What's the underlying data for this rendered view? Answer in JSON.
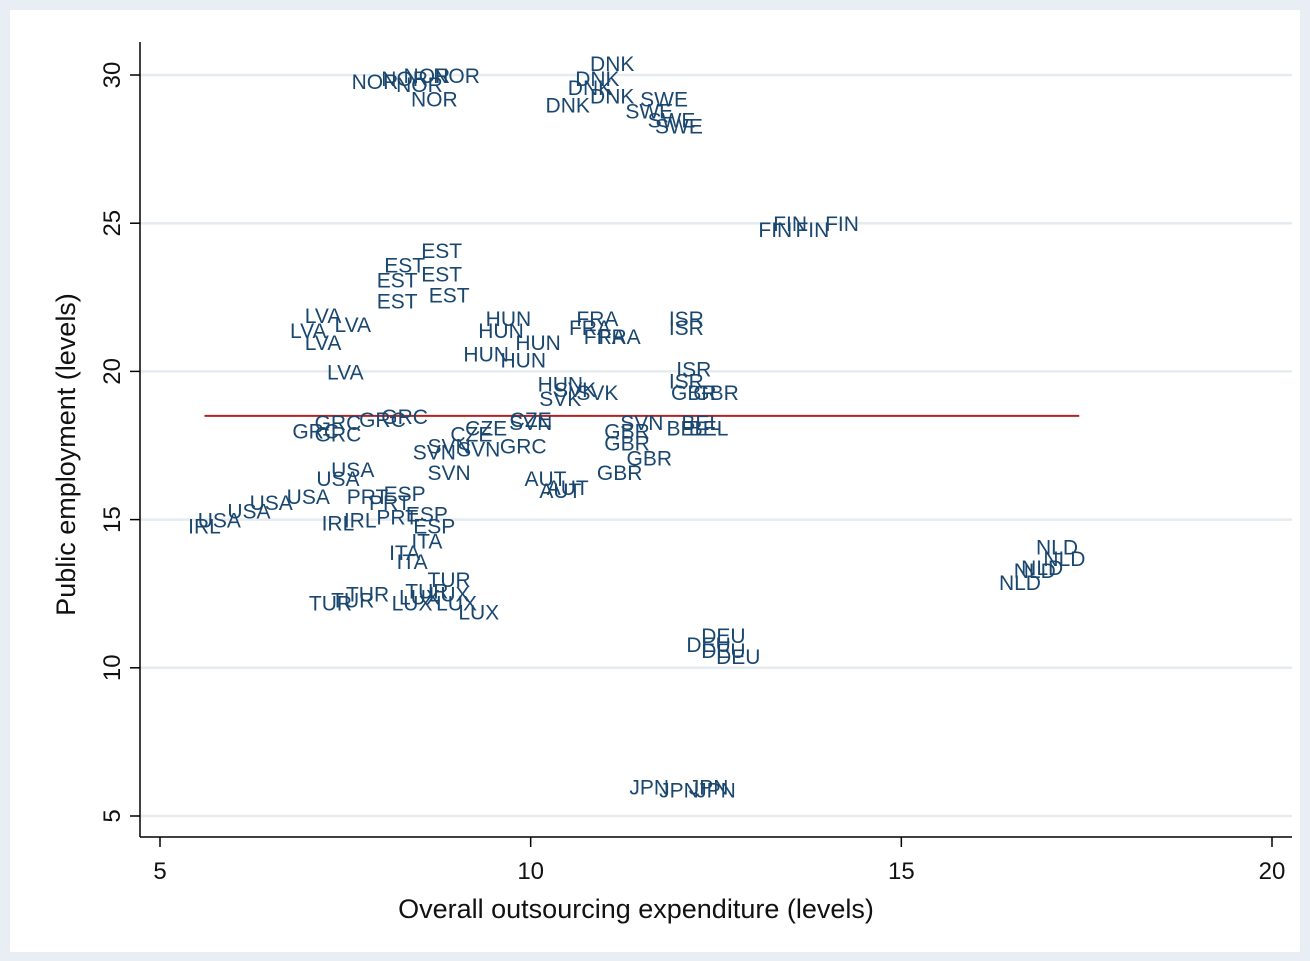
{
  "chart_data": {
    "type": "scatter",
    "marker": "country-code-label",
    "xlabel": "Overall outsourcing expenditure (levels)",
    "ylabel": "Public employment (levels)",
    "xlim": [
      5,
      20
    ],
    "ylim": [
      5,
      31
    ],
    "xticks": [
      5,
      10,
      15,
      20
    ],
    "yticks": [
      5,
      10,
      15,
      20,
      25,
      30
    ],
    "grid": "horizontal",
    "series_color": "#1a476f",
    "reference_line": {
      "type": "horizontal",
      "y": 18.5,
      "x": [
        5.6,
        17.4
      ],
      "color": "#b22222"
    },
    "points": [
      {
        "label": "NOR",
        "x": 7.9,
        "y": 29.8
      },
      {
        "label": "NOR",
        "x": 8.3,
        "y": 29.9
      },
      {
        "label": "NOR",
        "x": 8.6,
        "y": 30.0
      },
      {
        "label": "NOR",
        "x": 9.0,
        "y": 30.0
      },
      {
        "label": "NOR",
        "x": 8.5,
        "y": 29.7
      },
      {
        "label": "NOR",
        "x": 8.7,
        "y": 29.2
      },
      {
        "label": "DNK",
        "x": 11.1,
        "y": 30.4
      },
      {
        "label": "DNK",
        "x": 10.9,
        "y": 29.9
      },
      {
        "label": "DNK",
        "x": 10.8,
        "y": 29.6
      },
      {
        "label": "DNK",
        "x": 11.1,
        "y": 29.3
      },
      {
        "label": "DNK",
        "x": 10.5,
        "y": 29.0
      },
      {
        "label": "SWE",
        "x": 11.8,
        "y": 29.2
      },
      {
        "label": "SWE",
        "x": 11.6,
        "y": 28.8
      },
      {
        "label": "SWE",
        "x": 11.9,
        "y": 28.5
      },
      {
        "label": "SWE",
        "x": 12.0,
        "y": 28.3
      },
      {
        "label": "FIN",
        "x": 13.5,
        "y": 25.0
      },
      {
        "label": "FIN",
        "x": 14.2,
        "y": 25.0
      },
      {
        "label": "FIN",
        "x": 13.3,
        "y": 24.8
      },
      {
        "label": "FIN",
        "x": 13.8,
        "y": 24.8
      },
      {
        "label": "EST",
        "x": 8.8,
        "y": 24.1
      },
      {
        "label": "EST",
        "x": 8.3,
        "y": 23.6
      },
      {
        "label": "EST",
        "x": 8.8,
        "y": 23.3
      },
      {
        "label": "EST",
        "x": 8.2,
        "y": 23.1
      },
      {
        "label": "EST",
        "x": 8.9,
        "y": 22.6
      },
      {
        "label": "EST",
        "x": 8.2,
        "y": 22.4
      },
      {
        "label": "LVA",
        "x": 7.2,
        "y": 21.9
      },
      {
        "label": "LVA",
        "x": 7.6,
        "y": 21.6
      },
      {
        "label": "LVA",
        "x": 7.0,
        "y": 21.4
      },
      {
        "label": "LVA",
        "x": 7.2,
        "y": 21.0
      },
      {
        "label": "LVA",
        "x": 7.5,
        "y": 20.0
      },
      {
        "label": "HUN",
        "x": 9.7,
        "y": 21.8
      },
      {
        "label": "HUN",
        "x": 9.6,
        "y": 21.4
      },
      {
        "label": "HUN",
        "x": 10.1,
        "y": 21.0
      },
      {
        "label": "HUN",
        "x": 9.4,
        "y": 20.6
      },
      {
        "label": "HUN",
        "x": 9.9,
        "y": 20.4
      },
      {
        "label": "HUN",
        "x": 10.4,
        "y": 19.6
      },
      {
        "label": "FRA",
        "x": 10.9,
        "y": 21.8
      },
      {
        "label": "FRA",
        "x": 10.8,
        "y": 21.5
      },
      {
        "label": "FRA",
        "x": 11.0,
        "y": 21.2
      },
      {
        "label": "FRA",
        "x": 11.2,
        "y": 21.2
      },
      {
        "label": "ISR",
        "x": 12.1,
        "y": 21.8
      },
      {
        "label": "ISR",
        "x": 12.1,
        "y": 21.5
      },
      {
        "label": "ISR",
        "x": 12.2,
        "y": 20.1
      },
      {
        "label": "ISR",
        "x": 12.1,
        "y": 19.7
      },
      {
        "label": "GBR",
        "x": 12.2,
        "y": 19.3
      },
      {
        "label": "GBR",
        "x": 12.5,
        "y": 19.3
      },
      {
        "label": "GBR",
        "x": 11.3,
        "y": 18.0
      },
      {
        "label": "GBR",
        "x": 11.3,
        "y": 17.6
      },
      {
        "label": "GBR",
        "x": 11.6,
        "y": 17.1
      },
      {
        "label": "GBR",
        "x": 11.2,
        "y": 16.6
      },
      {
        "label": "GRC",
        "x": 7.4,
        "y": 18.3
      },
      {
        "label": "GRC",
        "x": 8.0,
        "y": 18.4
      },
      {
        "label": "GRC",
        "x": 8.3,
        "y": 18.5
      },
      {
        "label": "GRC",
        "x": 7.1,
        "y": 18.0
      },
      {
        "label": "GRC",
        "x": 7.4,
        "y": 17.9
      },
      {
        "label": "GRC",
        "x": 9.9,
        "y": 17.5
      },
      {
        "label": "SVK",
        "x": 10.6,
        "y": 19.4
      },
      {
        "label": "SVK",
        "x": 10.9,
        "y": 19.3
      },
      {
        "label": "SVK",
        "x": 10.4,
        "y": 19.1
      },
      {
        "label": "CZE",
        "x": 10.0,
        "y": 18.4
      },
      {
        "label": "CZE",
        "x": 9.4,
        "y": 18.1
      },
      {
        "label": "CZE",
        "x": 9.2,
        "y": 17.9
      },
      {
        "label": "SVN",
        "x": 10.0,
        "y": 18.3
      },
      {
        "label": "SVN",
        "x": 11.5,
        "y": 18.3
      },
      {
        "label": "SVN",
        "x": 8.9,
        "y": 17.5
      },
      {
        "label": "SVN",
        "x": 9.3,
        "y": 17.4
      },
      {
        "label": "SVN",
        "x": 8.7,
        "y": 17.3
      },
      {
        "label": "SVN",
        "x": 8.9,
        "y": 16.6
      },
      {
        "label": "BEL",
        "x": 12.3,
        "y": 18.3
      },
      {
        "label": "BEL",
        "x": 12.1,
        "y": 18.1
      },
      {
        "label": "BEL",
        "x": 12.4,
        "y": 18.1
      },
      {
        "label": "USA",
        "x": 7.6,
        "y": 16.7
      },
      {
        "label": "USA",
        "x": 7.4,
        "y": 16.4
      },
      {
        "label": "USA",
        "x": 7.0,
        "y": 15.8
      },
      {
        "label": "USA",
        "x": 6.5,
        "y": 15.6
      },
      {
        "label": "USA",
        "x": 6.2,
        "y": 15.3
      },
      {
        "label": "USA",
        "x": 5.8,
        "y": 15.0
      },
      {
        "label": "IRL",
        "x": 5.6,
        "y": 14.8
      },
      {
        "label": "IRL",
        "x": 7.4,
        "y": 14.9
      },
      {
        "label": "IRL",
        "x": 7.7,
        "y": 15.0
      },
      {
        "label": "PRT",
        "x": 7.8,
        "y": 15.8
      },
      {
        "label": "PRT",
        "x": 8.1,
        "y": 15.6
      },
      {
        "label": "PRT",
        "x": 8.2,
        "y": 15.1
      },
      {
        "label": "ESP",
        "x": 8.3,
        "y": 15.9
      },
      {
        "label": "ESP",
        "x": 8.6,
        "y": 15.2
      },
      {
        "label": "ESP",
        "x": 8.7,
        "y": 14.8
      },
      {
        "label": "AUT",
        "x": 10.2,
        "y": 16.4
      },
      {
        "label": "AUT",
        "x": 10.5,
        "y": 16.1
      },
      {
        "label": "AUT",
        "x": 10.4,
        "y": 16.0
      },
      {
        "label": "ITA",
        "x": 8.6,
        "y": 14.3
      },
      {
        "label": "ITA",
        "x": 8.3,
        "y": 13.9
      },
      {
        "label": "ITA",
        "x": 8.4,
        "y": 13.6
      },
      {
        "label": "TUR",
        "x": 8.9,
        "y": 13.0
      },
      {
        "label": "TUR",
        "x": 8.6,
        "y": 12.6
      },
      {
        "label": "TUR",
        "x": 7.8,
        "y": 12.5
      },
      {
        "label": "TUR",
        "x": 7.6,
        "y": 12.3
      },
      {
        "label": "TUR",
        "x": 7.3,
        "y": 12.2
      },
      {
        "label": "LUX",
        "x": 8.5,
        "y": 12.4
      },
      {
        "label": "LUX",
        "x": 8.9,
        "y": 12.5
      },
      {
        "label": "LUX",
        "x": 8.4,
        "y": 12.2
      },
      {
        "label": "LUX",
        "x": 9.0,
        "y": 12.2
      },
      {
        "label": "LUX",
        "x": 9.3,
        "y": 11.9
      },
      {
        "label": "NLD",
        "x": 17.1,
        "y": 14.1
      },
      {
        "label": "NLD",
        "x": 17.2,
        "y": 13.7
      },
      {
        "label": "NLD",
        "x": 16.9,
        "y": 13.4
      },
      {
        "label": "NLD",
        "x": 16.8,
        "y": 13.3
      },
      {
        "label": "NLD",
        "x": 16.6,
        "y": 12.9
      },
      {
        "label": "DEU",
        "x": 12.6,
        "y": 11.1
      },
      {
        "label": "DEU",
        "x": 12.4,
        "y": 10.8
      },
      {
        "label": "DEU",
        "x": 12.6,
        "y": 10.6
      },
      {
        "label": "DEU",
        "x": 12.8,
        "y": 10.4
      },
      {
        "label": "JPN",
        "x": 11.6,
        "y": 6.0
      },
      {
        "label": "JPN",
        "x": 12.0,
        "y": 5.9
      },
      {
        "label": "JPN",
        "x": 12.4,
        "y": 6.0
      },
      {
        "label": "JPN",
        "x": 12.5,
        "y": 5.9
      }
    ]
  }
}
